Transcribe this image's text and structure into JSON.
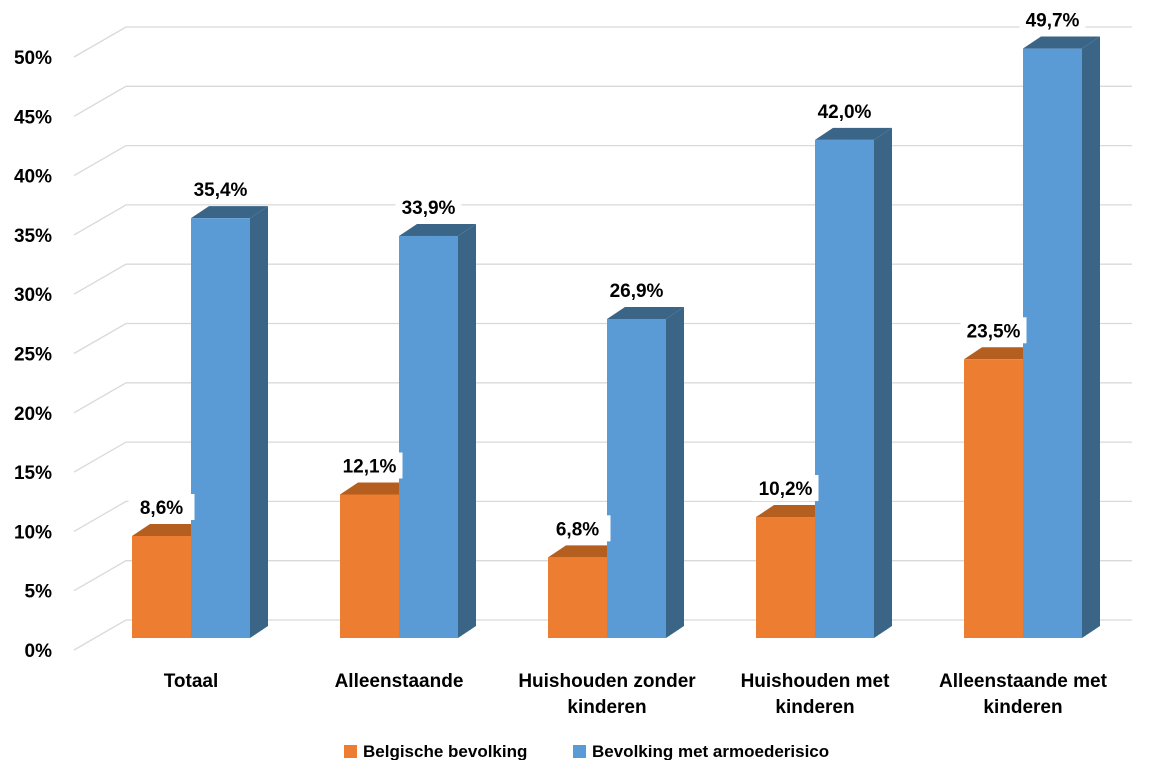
{
  "chart_data": {
    "type": "bar",
    "title": "",
    "xlabel": "",
    "ylabel": "",
    "ylim": [
      0,
      50
    ],
    "yticks": [
      "0%",
      "5%",
      "10%",
      "15%",
      "20%",
      "25%",
      "30%",
      "35%",
      "40%",
      "45%",
      "50%"
    ],
    "grid": true,
    "legend_position": "bottom",
    "style": "3d-clustered-columns",
    "categories": [
      [
        "Totaal"
      ],
      [
        "Alleenstaande"
      ],
      [
        "Huishouden zonder",
        "kinderen"
      ],
      [
        "Huishouden met",
        "kinderen"
      ],
      [
        "Alleenstaande met",
        "kinderen"
      ]
    ],
    "series": [
      {
        "name": "Belgische bevolking",
        "color": "#ED7D31",
        "side_color": "#B45F1F",
        "values": [
          8.6,
          12.1,
          6.8,
          10.2,
          23.5
        ],
        "labels": [
          "8,6%",
          "12,1%",
          "6,8%",
          "10,2%",
          "23,5%"
        ]
      },
      {
        "name": "Bevolking met armoederisico",
        "color": "#5B9BD5",
        "side_color": "#3A6587",
        "values": [
          35.4,
          33.9,
          26.9,
          42.0,
          49.7
        ],
        "labels": [
          "35,4%",
          "33,9%",
          "26,9%",
          "42,0%",
          "49,7%"
        ]
      }
    ]
  }
}
